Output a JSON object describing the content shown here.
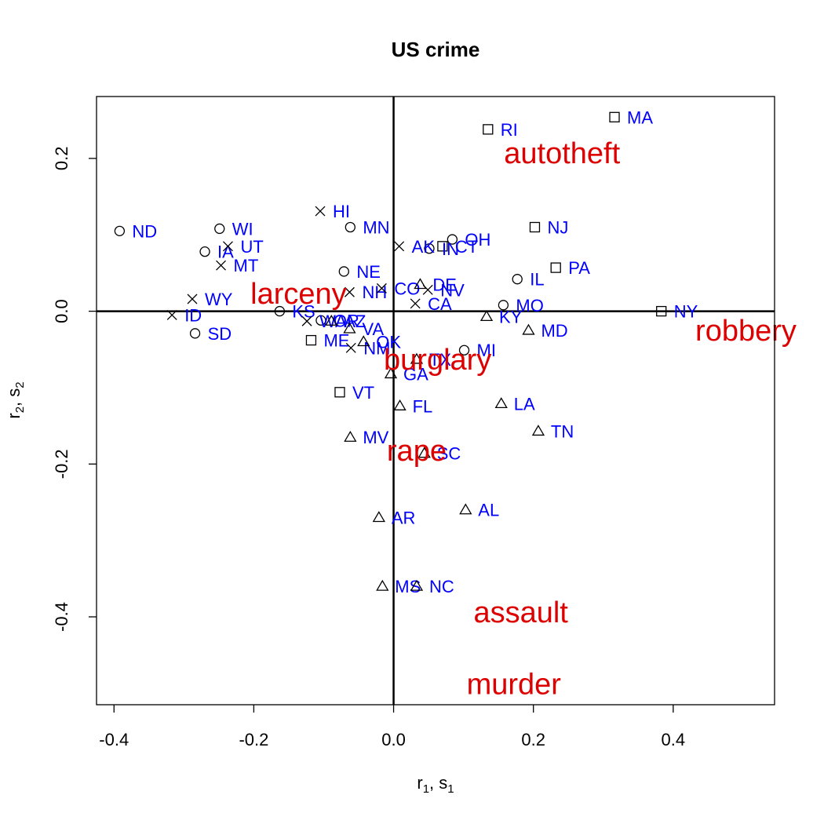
{
  "chart_data": {
    "type": "scatter",
    "title": "US crime",
    "xlabel": {
      "main": "r",
      "sub1": "1",
      "sep": ", s",
      "sub2": "1"
    },
    "ylabel": {
      "main": "r",
      "sub1": "2",
      "sep": ", s",
      "sub2": "2"
    },
    "xlim": [
      -0.425,
      0.545
    ],
    "ylim": [
      -0.515,
      0.281
    ],
    "x_ticks": [
      {
        "value": -0.4,
        "label": "-0.4"
      },
      {
        "value": -0.2,
        "label": "-0.2"
      },
      {
        "value": 0.0,
        "label": "0.0"
      },
      {
        "value": 0.2,
        "label": "0.2"
      },
      {
        "value": 0.4,
        "label": "0.4"
      }
    ],
    "y_ticks": [
      {
        "value": 0.2,
        "label": "0.2"
      },
      {
        "value": 0.0,
        "label": "0.0"
      },
      {
        "value": -0.2,
        "label": "-0.2"
      },
      {
        "value": -0.4,
        "label": "-0.4"
      }
    ],
    "reference_lines": {
      "x": 0,
      "y": 0
    },
    "grid": false,
    "colors": {
      "states": "#0000ff",
      "variables": "#dd0000",
      "markers": "#000000"
    },
    "points": [
      {
        "label": "MA",
        "x": 0.316,
        "y": 0.254,
        "marker": "square"
      },
      {
        "label": "RI",
        "x": 0.135,
        "y": 0.238,
        "marker": "square"
      },
      {
        "label": "NJ",
        "x": 0.202,
        "y": 0.11,
        "marker": "square"
      },
      {
        "label": "CT",
        "x": 0.07,
        "y": 0.085,
        "marker": "square"
      },
      {
        "label": "PA",
        "x": 0.232,
        "y": 0.057,
        "marker": "square"
      },
      {
        "label": "NY",
        "x": 0.383,
        "y": 0.0,
        "marker": "square"
      },
      {
        "label": "ME",
        "x": -0.118,
        "y": -0.038,
        "marker": "square"
      },
      {
        "label": "VT",
        "x": -0.077,
        "y": -0.106,
        "marker": "square"
      },
      {
        "label": "ND",
        "x": -0.392,
        "y": 0.105,
        "marker": "circle"
      },
      {
        "label": "WI",
        "x": -0.249,
        "y": 0.108,
        "marker": "circle"
      },
      {
        "label": "IA",
        "x": -0.27,
        "y": 0.078,
        "marker": "circle"
      },
      {
        "label": "MN",
        "x": -0.062,
        "y": 0.11,
        "marker": "circle"
      },
      {
        "label": "OH",
        "x": 0.084,
        "y": 0.094,
        "marker": "circle"
      },
      {
        "label": "IN",
        "x": 0.051,
        "y": 0.082,
        "marker": "circle"
      },
      {
        "label": "NE",
        "x": -0.071,
        "y": 0.052,
        "marker": "circle"
      },
      {
        "label": "IL",
        "x": 0.177,
        "y": 0.042,
        "marker": "circle"
      },
      {
        "label": "MO",
        "x": 0.157,
        "y": 0.008,
        "marker": "circle"
      },
      {
        "label": "KS",
        "x": -0.163,
        "y": 0.0,
        "marker": "circle"
      },
      {
        "label": "SD",
        "x": -0.284,
        "y": -0.029,
        "marker": "circle"
      },
      {
        "label": "OR",
        "x": -0.104,
        "y": -0.012,
        "marker": "circle"
      },
      {
        "label": "MI",
        "x": 0.101,
        "y": -0.051,
        "marker": "circle"
      },
      {
        "label": "HI",
        "x": -0.105,
        "y": 0.131,
        "marker": "x"
      },
      {
        "label": "UT",
        "x": -0.237,
        "y": 0.085,
        "marker": "x"
      },
      {
        "label": "MT",
        "x": -0.247,
        "y": 0.06,
        "marker": "x"
      },
      {
        "label": "AK",
        "x": 0.008,
        "y": 0.085,
        "marker": "x"
      },
      {
        "label": "NH",
        "x": -0.063,
        "y": 0.025,
        "marker": "x"
      },
      {
        "label": "CO",
        "x": -0.017,
        "y": 0.03,
        "marker": "x"
      },
      {
        "label": "NV",
        "x": 0.049,
        "y": 0.028,
        "marker": "x"
      },
      {
        "label": "WY",
        "x": -0.288,
        "y": 0.016,
        "marker": "x"
      },
      {
        "label": "CA",
        "x": 0.031,
        "y": 0.01,
        "marker": "x"
      },
      {
        "label": "ID",
        "x": -0.317,
        "y": -0.005,
        "marker": "x"
      },
      {
        "label": "WA",
        "x": -0.124,
        "y": -0.013,
        "marker": "x"
      },
      {
        "label": "NM",
        "x": -0.061,
        "y": -0.048,
        "marker": "x"
      },
      {
        "label": "DE",
        "x": 0.038,
        "y": 0.035,
        "marker": "triangle"
      },
      {
        "label": "AZ",
        "x": -0.089,
        "y": -0.013,
        "marker": "triangle"
      },
      {
        "label": "KY",
        "x": 0.133,
        "y": -0.007,
        "marker": "triangle"
      },
      {
        "label": "VA",
        "x": -0.063,
        "y": -0.023,
        "marker": "triangle"
      },
      {
        "label": "MD",
        "x": 0.193,
        "y": -0.025,
        "marker": "triangle"
      },
      {
        "label": "OK",
        "x": -0.043,
        "y": -0.04,
        "marker": "triangle"
      },
      {
        "label": "TX",
        "x": 0.033,
        "y": -0.063,
        "marker": "triangle"
      },
      {
        "label": "GA",
        "x": -0.004,
        "y": -0.082,
        "marker": "triangle"
      },
      {
        "label": "FL",
        "x": 0.009,
        "y": -0.124,
        "marker": "triangle"
      },
      {
        "label": "LA",
        "x": 0.154,
        "y": -0.121,
        "marker": "triangle"
      },
      {
        "label": "TN",
        "x": 0.207,
        "y": -0.157,
        "marker": "triangle"
      },
      {
        "label": "MV",
        "x": -0.062,
        "y": -0.165,
        "marker": "triangle"
      },
      {
        "label": "SC",
        "x": 0.044,
        "y": -0.186,
        "marker": "triangle"
      },
      {
        "label": "AL",
        "x": 0.103,
        "y": -0.26,
        "marker": "triangle"
      },
      {
        "label": "AR",
        "x": -0.021,
        "y": -0.27,
        "marker": "triangle"
      },
      {
        "label": "MS",
        "x": -0.016,
        "y": -0.36,
        "marker": "triangle"
      },
      {
        "label": "NC",
        "x": 0.033,
        "y": -0.36,
        "marker": "triangle"
      }
    ],
    "variables": [
      {
        "label": "autotheft",
        "x": 0.241,
        "y": 0.207
      },
      {
        "label": "larceny",
        "x": -0.136,
        "y": 0.023
      },
      {
        "label": "robbery",
        "x": 0.504,
        "y": -0.025
      },
      {
        "label": "burglary",
        "x": 0.063,
        "y": -0.063
      },
      {
        "label": "rape",
        "x": 0.033,
        "y": -0.182
      },
      {
        "label": "assault",
        "x": 0.182,
        "y": -0.394
      },
      {
        "label": "murder",
        "x": 0.172,
        "y": -0.488
      }
    ]
  }
}
